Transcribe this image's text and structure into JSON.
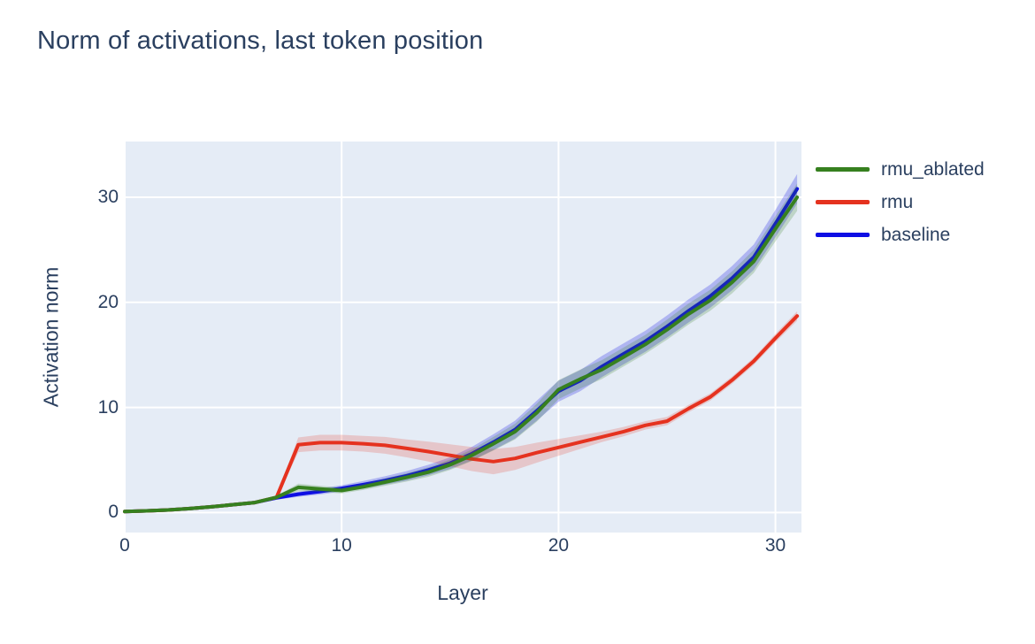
{
  "page": {
    "background": "#ffffff",
    "text_color": "#2a3f5f"
  },
  "title": "Norm of activations, last token position",
  "legend": {
    "position": "right",
    "items": [
      {
        "label": "rmu_ablated",
        "color": "#36801f"
      },
      {
        "label": "rmu",
        "color": "#e5321f"
      },
      {
        "label": "baseline",
        "color": "#0e0ee4"
      }
    ]
  },
  "chart_data": {
    "type": "line",
    "title": "Norm of activations, last token position",
    "xlabel": "Layer",
    "ylabel": "Activation norm",
    "x": [
      0,
      1,
      2,
      3,
      4,
      5,
      6,
      7,
      8,
      9,
      10,
      11,
      12,
      13,
      14,
      15,
      16,
      17,
      18,
      19,
      20,
      21,
      22,
      23,
      24,
      25,
      26,
      27,
      28,
      29,
      30,
      31
    ],
    "xticks": [
      0,
      10,
      20,
      30
    ],
    "yticks": [
      0,
      10,
      20,
      30
    ],
    "xlim": [
      0,
      31.2
    ],
    "ylim": [
      -1.9,
      35.3
    ],
    "grid": true,
    "plot_background": "#e5ecf6",
    "gridline_color": "#ffffff",
    "legend_position": "right",
    "series": [
      {
        "name": "baseline",
        "color": "#0e0ee4",
        "band_opacity": 0.25,
        "values": [
          0.1,
          0.16,
          0.25,
          0.38,
          0.55,
          0.75,
          0.95,
          1.4,
          1.75,
          2.0,
          2.3,
          2.65,
          3.05,
          3.5,
          4.05,
          4.7,
          5.6,
          6.7,
          7.9,
          9.7,
          11.55,
          12.55,
          13.9,
          15.1,
          16.3,
          17.7,
          19.2,
          20.6,
          22.3,
          24.3,
          27.5,
          30.8
        ],
        "band_halfwidth": [
          0.05,
          0.06,
          0.07,
          0.08,
          0.1,
          0.12,
          0.14,
          0.18,
          0.25,
          0.28,
          0.3,
          0.35,
          0.4,
          0.45,
          0.5,
          0.55,
          0.65,
          0.75,
          0.85,
          0.95,
          1.0,
          1.0,
          1.0,
          1.0,
          1.0,
          1.05,
          1.1,
          1.1,
          1.15,
          1.2,
          1.3,
          1.4
        ]
      },
      {
        "name": "rmu",
        "color": "#e5321f",
        "band_opacity": 0.2,
        "values": [
          0.1,
          0.16,
          0.25,
          0.38,
          0.55,
          0.75,
          0.95,
          1.45,
          6.45,
          6.65,
          6.65,
          6.55,
          6.4,
          6.1,
          5.8,
          5.45,
          5.1,
          4.85,
          5.15,
          5.7,
          6.2,
          6.7,
          7.2,
          7.7,
          8.3,
          8.7,
          9.9,
          11.0,
          12.6,
          14.4,
          16.6,
          18.7
        ],
        "band_halfwidth": [
          0.04,
          0.05,
          0.06,
          0.07,
          0.08,
          0.1,
          0.12,
          0.15,
          0.7,
          0.75,
          0.75,
          0.75,
          0.8,
          0.85,
          0.95,
          1.05,
          1.15,
          1.2,
          1.1,
          0.95,
          0.8,
          0.65,
          0.5,
          0.45,
          0.4,
          0.4,
          0.35,
          0.35,
          0.35,
          0.35,
          0.4,
          0.45
        ]
      },
      {
        "name": "rmu_ablated",
        "color": "#36801f",
        "band_opacity": 0.22,
        "values": [
          0.1,
          0.16,
          0.25,
          0.38,
          0.55,
          0.75,
          0.95,
          1.45,
          2.4,
          2.25,
          2.1,
          2.45,
          2.9,
          3.35,
          3.85,
          4.55,
          5.45,
          6.55,
          7.7,
          9.5,
          11.7,
          12.7,
          13.6,
          14.8,
          16.0,
          17.4,
          18.9,
          20.2,
          21.9,
          23.9,
          27.0,
          30.0
        ],
        "band_halfwidth": [
          0.04,
          0.05,
          0.06,
          0.07,
          0.08,
          0.1,
          0.12,
          0.15,
          0.35,
          0.3,
          0.28,
          0.3,
          0.35,
          0.4,
          0.45,
          0.5,
          0.55,
          0.65,
          0.75,
          0.85,
          0.9,
          0.9,
          0.9,
          0.9,
          0.9,
          0.95,
          1.0,
          1.0,
          1.05,
          1.1,
          1.2,
          1.3
        ]
      }
    ]
  }
}
